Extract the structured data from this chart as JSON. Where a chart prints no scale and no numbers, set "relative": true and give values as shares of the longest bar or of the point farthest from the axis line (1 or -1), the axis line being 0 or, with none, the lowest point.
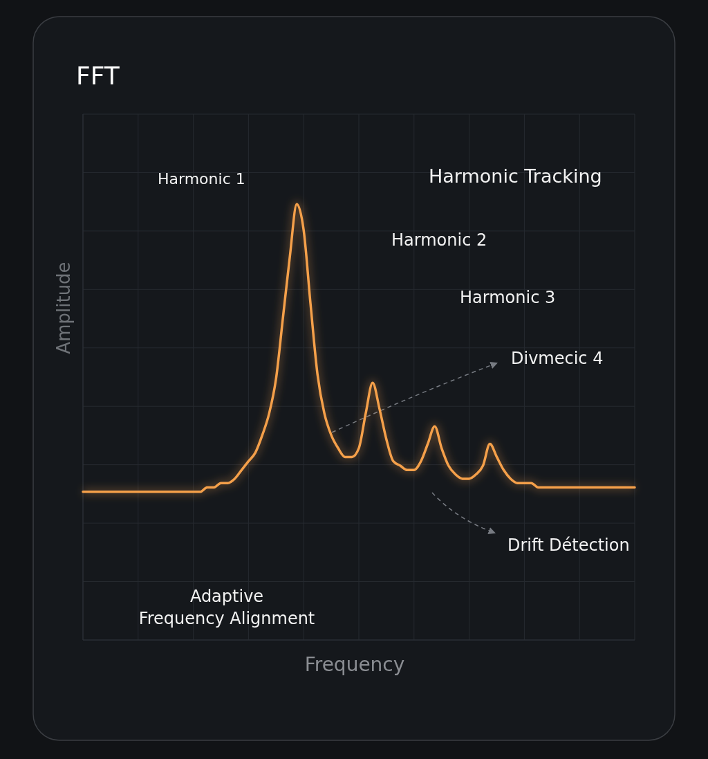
{
  "chart_data": {
    "type": "line",
    "title": "FFT",
    "xlabel": "Frequency",
    "ylabel": "Amplitude",
    "relative": true,
    "grid": true,
    "marker": "none",
    "line_style": "solid",
    "categories": [
      null,
      null,
      null,
      null,
      null,
      null,
      null,
      null,
      null,
      null,
      null,
      null,
      null,
      null,
      null,
      null,
      null,
      null,
      null,
      null,
      null,
      null,
      null,
      null,
      null,
      null,
      null,
      null,
      null,
      null,
      null,
      null,
      null,
      null,
      null,
      null,
      null,
      null,
      null,
      null,
      null,
      null,
      null,
      null,
      null,
      null,
      null,
      null,
      null,
      null,
      null,
      null,
      null,
      null,
      null,
      null,
      null,
      null,
      null,
      null,
      null,
      null,
      null,
      null,
      null,
      null,
      null,
      null,
      null,
      null,
      null,
      null,
      null,
      null,
      null,
      null,
      null,
      null,
      null,
      null,
      null
    ],
    "series": [
      {
        "color": "#f5a04a",
        "values": [
          0.34,
          0.34,
          0.34,
          0.34,
          0.34,
          0.34,
          0.34,
          0.34,
          0.34,
          0.34,
          0.34,
          0.34,
          0.34,
          0.34,
          0.34,
          0.34,
          0.34,
          0.34,
          0.35,
          0.35,
          0.36,
          0.36,
          0.37,
          0.39,
          0.41,
          0.43,
          0.47,
          0.52,
          0.6,
          0.74,
          0.88,
          1.0,
          0.94,
          0.77,
          0.61,
          0.52,
          0.47,
          0.44,
          0.42,
          0.42,
          0.44,
          0.52,
          0.59,
          0.53,
          0.46,
          0.41,
          0.4,
          0.39,
          0.39,
          0.41,
          0.45,
          0.49,
          0.44,
          0.4,
          0.38,
          0.37,
          0.37,
          0.38,
          0.4,
          0.45,
          0.42,
          0.39,
          0.37,
          0.36,
          0.36,
          0.36,
          0.35,
          0.35,
          0.35,
          0.35,
          0.35,
          0.35,
          0.35,
          0.35,
          0.35,
          0.35,
          0.35,
          0.35,
          0.35,
          0.35,
          0.35
        ]
      }
    ],
    "annotations": [
      "Harmonic 1",
      "Harmonic Tracking",
      "Harmonic 2",
      "Harmonic 3",
      "Divmecic 4",
      "Drift Détection",
      "Adaptive\nFrequency Alignment"
    ]
  }
}
